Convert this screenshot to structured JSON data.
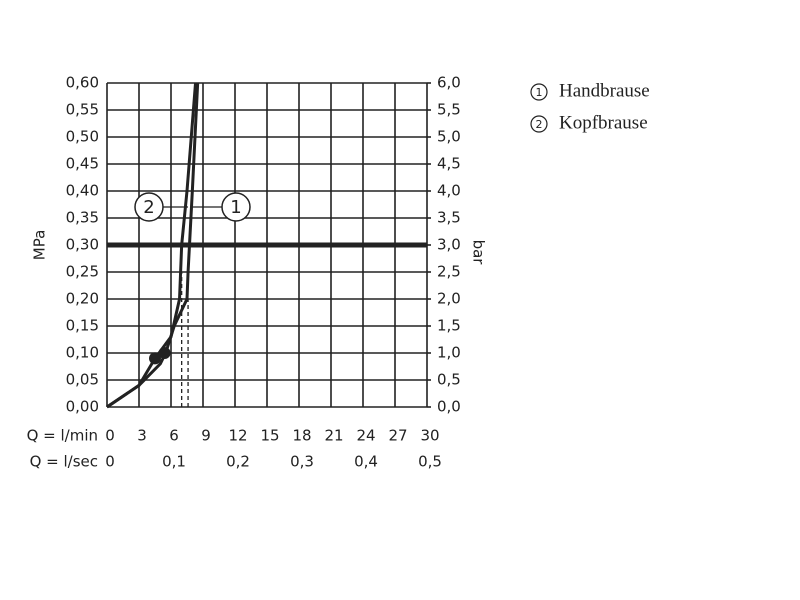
{
  "chart_data": {
    "type": "line",
    "xlabel": "Q = l/min",
    "x2label": "Q = l/sec",
    "ylabel": "MPa",
    "y2label": "bar",
    "xlim": [
      0,
      30
    ],
    "xticks": [
      0,
      3,
      6,
      9,
      12,
      15,
      18,
      21,
      24,
      27,
      30
    ],
    "x2lim": [
      0,
      0.5
    ],
    "x2ticks": [
      0,
      {
        "value": 0.1,
        "label": "0,1"
      },
      {
        "value": 0.2,
        "label": "0,2"
      },
      {
        "value": 0.3,
        "label": "0,3"
      },
      {
        "value": 0.4,
        "label": "0,4"
      },
      {
        "value": 0.5,
        "label": "0,5"
      }
    ],
    "ylim": [
      0,
      0.6
    ],
    "yticks": [
      {
        "value": 0,
        "label": "0,00"
      },
      {
        "value": 0.05,
        "label": "0,05"
      },
      {
        "value": 0.1,
        "label": "0,10"
      },
      {
        "value": 0.15,
        "label": "0,15"
      },
      {
        "value": 0.2,
        "label": "0,20"
      },
      {
        "value": 0.25,
        "label": "0,25"
      },
      {
        "value": 0.3,
        "label": "0,30"
      },
      {
        "value": 0.35,
        "label": "0,35"
      },
      {
        "value": 0.4,
        "label": "0,40"
      },
      {
        "value": 0.45,
        "label": "0,45"
      },
      {
        "value": 0.5,
        "label": "0,50"
      },
      {
        "value": 0.55,
        "label": "0,55"
      },
      {
        "value": 0.6,
        "label": "0,60"
      }
    ],
    "y2lim": [
      0,
      6
    ],
    "y2ticks": [
      {
        "value": 0,
        "label": "0,0"
      },
      {
        "value": 0.5,
        "label": "0,5"
      },
      {
        "value": 1,
        "label": "1,0"
      },
      {
        "value": 1.5,
        "label": "1,5"
      },
      {
        "value": 2,
        "label": "2,0"
      },
      {
        "value": 2.5,
        "label": "2,5"
      },
      {
        "value": 3,
        "label": "3,0"
      },
      {
        "value": 3.5,
        "label": "3,5"
      },
      {
        "value": 4,
        "label": "4,0"
      },
      {
        "value": 4.5,
        "label": "4,5"
      },
      {
        "value": 5,
        "label": "5,0"
      },
      {
        "value": 5.5,
        "label": "5,5"
      },
      {
        "value": 6,
        "label": "6,0"
      }
    ],
    "grid": true,
    "hline": 0.3,
    "color": "#222222",
    "series": [
      {
        "name": "Handbrause",
        "marker_label": "1",
        "color": "#222222",
        "x": [
          0,
          3,
          5,
          5.5,
          6.3,
          7.5,
          7.6,
          8,
          8.5
        ],
        "values": [
          0,
          0.04,
          0.08,
          0.1,
          0.15,
          0.2,
          0.25,
          0.4,
          0.6
        ]
      },
      {
        "name": "Kopfbrause",
        "marker_label": "2",
        "color": "#222222",
        "x": [
          0,
          3,
          4.5,
          6,
          6.8,
          7,
          7.5,
          8.3
        ],
        "values": [
          0,
          0.04,
          0.09,
          0.13,
          0.2,
          0.3,
          0.4,
          0.6
        ]
      }
    ],
    "points": {
      "x": [
        4.5,
        5.4
      ],
      "values": [
        0.09,
        0.1
      ]
    },
    "dashed": {
      "x": [
        7.0,
        7.6
      ],
      "values": [
        0.25,
        0.2
      ]
    }
  }
}
